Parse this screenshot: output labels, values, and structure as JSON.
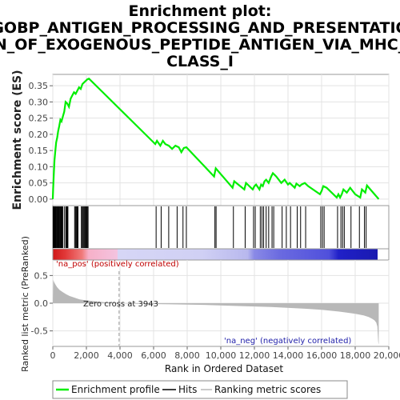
{
  "title_lines": [
    "Enrichment plot:",
    "GOBP_ANTIGEN_PROCESSING_AND_PRESENTATIO",
    "N_OF_EXOGENOUS_PEPTIDE_ANTIGEN_VIA_MHC_",
    "CLASS_I"
  ],
  "labels": {
    "es_ylabel": "Enrichment score (ES)",
    "metric_ylabel": "Ranked list metric (PreRanked)",
    "xlabel": "Rank in Ordered Dataset",
    "pos_label": "'na_pos' (positively correlated)",
    "neg_label": "'na_neg' (negatively correlated)",
    "zero_cross": "Zero cross at 3943"
  },
  "legend": {
    "items": [
      "Enrichment profile",
      "Hits",
      "Ranking metric scores"
    ]
  },
  "colors": {
    "es_line": "#00ee00",
    "hits": "#000000",
    "metric_fill": "#b8b8b8",
    "pos_text": "#c00000",
    "neg_text": "#2222aa"
  },
  "chart_data": {
    "type": "line",
    "x_axis": {
      "range": [
        0,
        20000
      ],
      "ticks": [
        0,
        2000,
        4000,
        6000,
        8000,
        10000,
        12000,
        14000,
        16000,
        18000,
        20000
      ],
      "tick_labels": [
        "0",
        "2,000",
        "4,000",
        "6,000",
        "8,000",
        "10,000",
        "12,000",
        "14,000",
        "16,000",
        "18,000",
        "20,000"
      ]
    },
    "es_axis": {
      "range": [
        -0.02,
        0.385
      ],
      "ticks": [
        0.0,
        0.05,
        0.1,
        0.15,
        0.2,
        0.25,
        0.3,
        0.35
      ],
      "tick_labels": [
        "0.00",
        "0.05",
        "0.10",
        "0.15",
        "0.20",
        "0.25",
        "0.30",
        "0.35"
      ]
    },
    "metric_axis": {
      "range": [
        -0.78,
        0.78
      ],
      "ticks": [
        0.5,
        0.0,
        -0.5
      ],
      "tick_labels": [
        "0.5",
        "0.0",
        "-0.5"
      ]
    },
    "total_genes": 19400,
    "zero_cross": 3943,
    "enrichment_profile": {
      "x": [
        0,
        20,
        60,
        100,
        150,
        200,
        260,
        320,
        380,
        450,
        520,
        600,
        680,
        760,
        860,
        960,
        1060,
        1160,
        1260,
        1360,
        1460,
        1560,
        1660,
        1760,
        1860,
        1960,
        2060,
        2150,
        6100,
        6200,
        6400,
        6550,
        6700,
        6900,
        7100,
        7300,
        7500,
        7650,
        7800,
        7950,
        9600,
        9700,
        10700,
        10800,
        11400,
        11500,
        11900,
        12000,
        12100,
        12300,
        12400,
        12500,
        12600,
        12700,
        12850,
        13000,
        13100,
        13300,
        13600,
        13800,
        14000,
        14100,
        14400,
        14500,
        14700,
        14800,
        15000,
        15200,
        15900,
        16000,
        16100,
        16300,
        16900,
        17000,
        17100,
        17200,
        17300,
        17500,
        17700,
        18000,
        18300,
        18400,
        18600,
        18700,
        19400
      ],
      "y": [
        0.0,
        0.03,
        0.08,
        0.12,
        0.15,
        0.175,
        0.19,
        0.21,
        0.225,
        0.245,
        0.24,
        0.255,
        0.27,
        0.3,
        0.295,
        0.285,
        0.31,
        0.32,
        0.33,
        0.325,
        0.335,
        0.345,
        0.34,
        0.355,
        0.36,
        0.365,
        0.37,
        0.372,
        0.17,
        0.18,
        0.165,
        0.18,
        0.17,
        0.165,
        0.155,
        0.165,
        0.16,
        0.145,
        0.158,
        0.16,
        0.07,
        0.095,
        0.035,
        0.055,
        0.03,
        0.05,
        0.03,
        0.04,
        0.045,
        0.03,
        0.045,
        0.04,
        0.055,
        0.06,
        0.05,
        0.07,
        0.08,
        0.07,
        0.05,
        0.06,
        0.045,
        0.05,
        0.035,
        0.048,
        0.04,
        0.045,
        0.05,
        0.04,
        0.015,
        0.025,
        0.04,
        0.035,
        0.005,
        0.015,
        0.005,
        0.015,
        0.03,
        0.02,
        0.035,
        0.015,
        0.005,
        0.03,
        0.02,
        0.042,
        0.0
      ]
    },
    "hits": [
      20,
      50,
      80,
      110,
      140,
      170,
      210,
      250,
      290,
      330,
      370,
      410,
      450,
      500,
      550,
      600,
      700,
      780,
      820,
      860,
      900,
      1300,
      1350,
      1400,
      1450,
      1500,
      1700,
      1750,
      1800,
      1850,
      1900,
      1950,
      2000,
      2050,
      2100,
      6150,
      6450,
      6900,
      7400,
      7750,
      7950,
      9650,
      9720,
      10750,
      11450,
      11950,
      12050,
      12350,
      12450,
      12550,
      12700,
      12850,
      13050,
      13150,
      13650,
      13900,
      14150,
      14550,
      14750,
      15050,
      15950,
      16050,
      16150,
      16950,
      17150,
      17250,
      17350,
      17750,
      18250,
      18550,
      18650
    ],
    "metric_profile": {
      "x": [
        0,
        30,
        80,
        150,
        250,
        400,
        600,
        800,
        1000,
        1300,
        1600,
        2000,
        2500,
        3000,
        3500,
        3943,
        5000,
        7000,
        9000,
        11000,
        13000,
        15000,
        16000,
        17000,
        17500,
        18000,
        18500,
        18800,
        19000,
        19150,
        19250,
        19320,
        19370,
        19400
      ],
      "y": [
        0.0,
        0.42,
        0.38,
        0.34,
        0.29,
        0.24,
        0.2,
        0.16,
        0.13,
        0.1,
        0.07,
        0.05,
        0.035,
        0.02,
        0.01,
        0.0,
        -0.01,
        -0.02,
        -0.03,
        -0.05,
        -0.07,
        -0.1,
        -0.12,
        -0.15,
        -0.17,
        -0.19,
        -0.22,
        -0.25,
        -0.28,
        -0.31,
        -0.35,
        -0.42,
        -0.7,
        -0.75
      ]
    }
  }
}
